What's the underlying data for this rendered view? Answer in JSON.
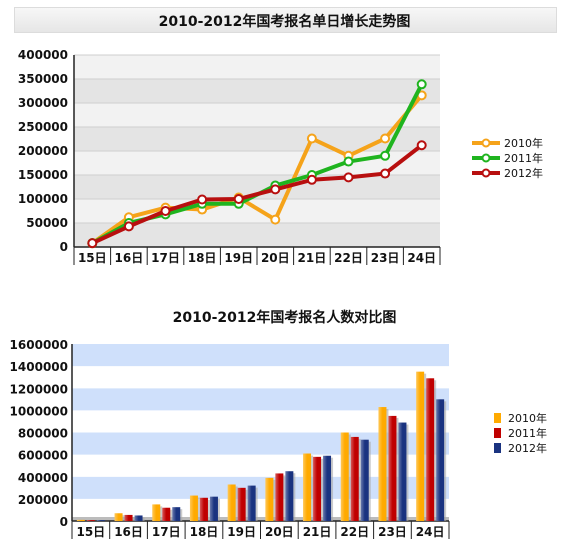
{
  "chart_data": [
    {
      "type": "line",
      "title": "2010-2012年国考报名单日增长走势图",
      "categories": [
        "15日",
        "16日",
        "17日",
        "18日",
        "19日",
        "20日",
        "21日",
        "22日",
        "23日",
        "24日"
      ],
      "series": [
        {
          "name": "2010年",
          "color": "#f5a31a",
          "values": [
            8000,
            62000,
            82000,
            78000,
            103000,
            57000,
            226000,
            190000,
            226000,
            316000
          ]
        },
        {
          "name": "2011年",
          "color": "#1fb41f",
          "values": [
            8000,
            50000,
            68000,
            90000,
            90000,
            128000,
            150000,
            178000,
            190000,
            339000
          ]
        },
        {
          "name": "2012年",
          "color": "#b80f0f",
          "values": [
            8000,
            43000,
            75000,
            99000,
            100000,
            120000,
            140000,
            145000,
            153000,
            212000
          ]
        }
      ],
      "ylim": [
        0,
        400000
      ],
      "yticks": [
        "0",
        "50000",
        "100000",
        "150000",
        "200000",
        "250000",
        "300000",
        "350000",
        "400000"
      ],
      "grid": true,
      "legend": "right"
    },
    {
      "type": "bar",
      "title": "2010-2012年国考报名人数对比图",
      "categories": [
        "15日",
        "16日",
        "17日",
        "18日",
        "19日",
        "20日",
        "21日",
        "22日",
        "23日",
        "24日"
      ],
      "series": [
        {
          "name": "2010年",
          "color": "#ffaa00",
          "values": [
            10000,
            70000,
            150000,
            230000,
            330000,
            390000,
            610000,
            800000,
            1030000,
            1350000
          ]
        },
        {
          "name": "2011年",
          "color": "#c00000",
          "values": [
            8000,
            55000,
            120000,
            210000,
            300000,
            430000,
            580000,
            760000,
            950000,
            1290000
          ]
        },
        {
          "name": "2012年",
          "color": "#1a3380",
          "values": [
            8000,
            50000,
            125000,
            220000,
            320000,
            450000,
            590000,
            735000,
            890000,
            1100000
          ]
        }
      ],
      "ylim": [
        0,
        1600000
      ],
      "yticks": [
        "0",
        "200000",
        "400000",
        "600000",
        "800000",
        "1000000",
        "1200000",
        "1400000",
        "1600000"
      ],
      "grid": true,
      "legend": "right"
    }
  ]
}
